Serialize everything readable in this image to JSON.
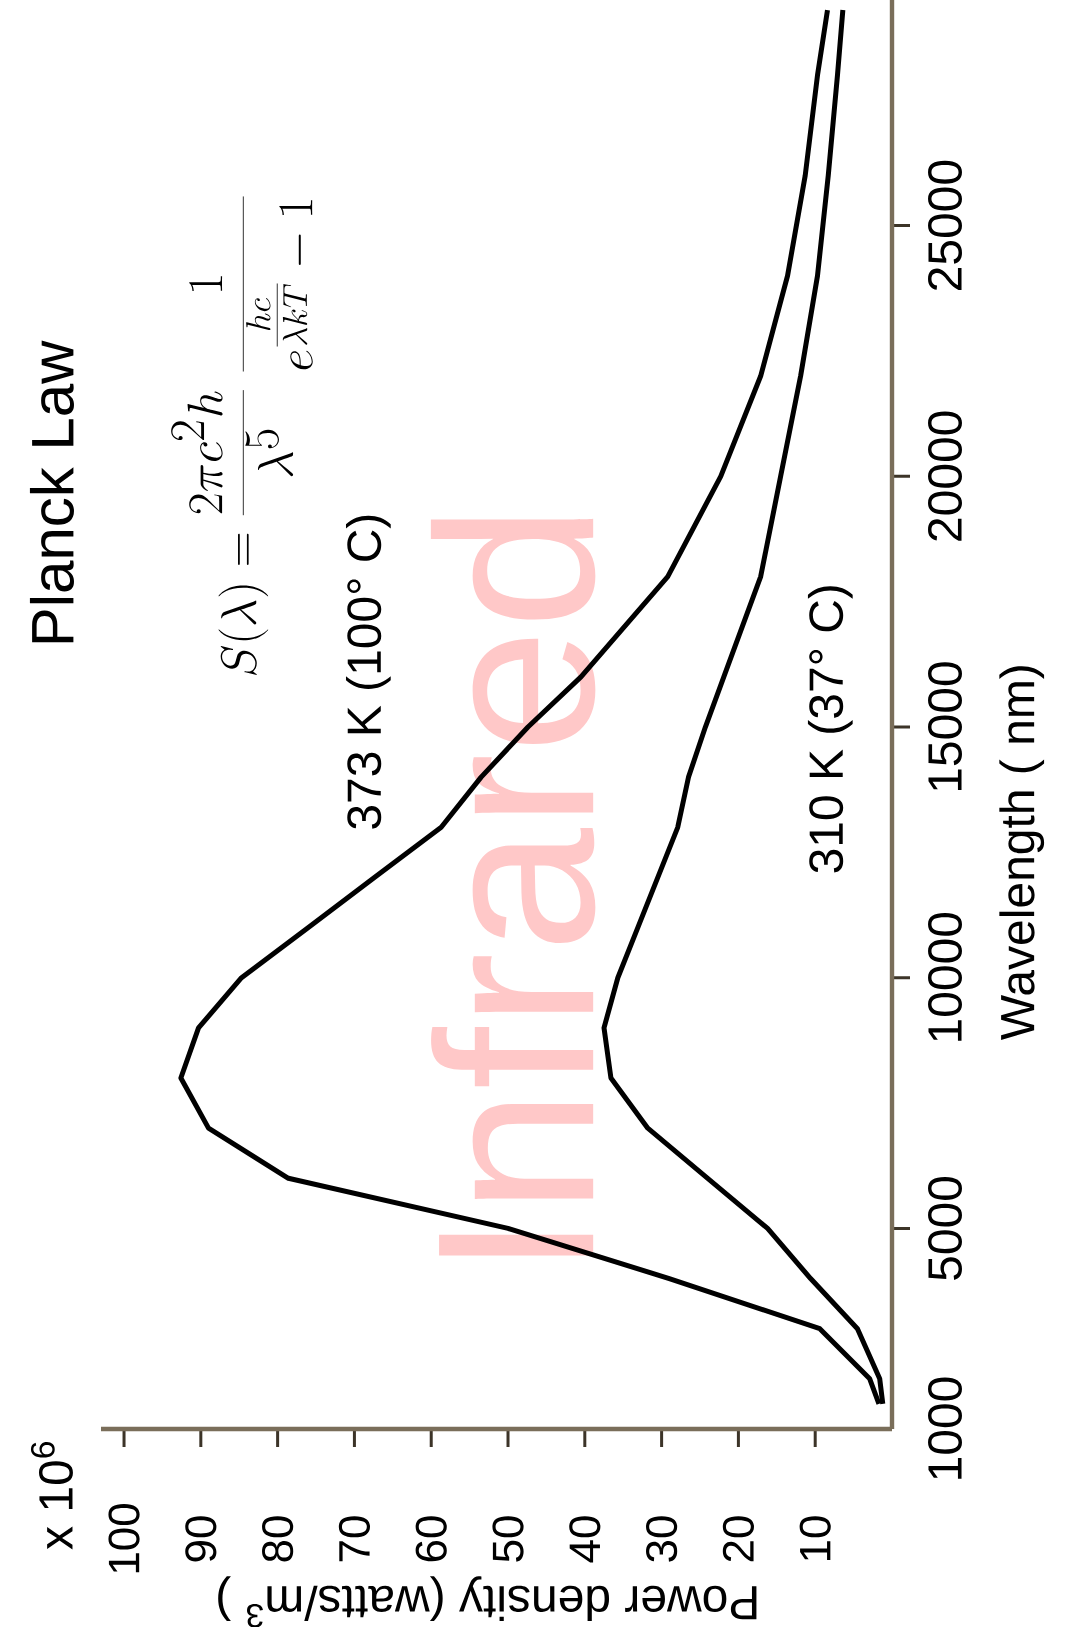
{
  "chart_data": {
    "type": "line",
    "title": "Planck Law",
    "xlabel": "Power density (watts/m$^{3}$ )",
    "ylabel": "Wavelength ( nm)",
    "annotations": [
      "S(\\lambda) = \\frac{2\\pi c^{2}h}{\\lambda^{5}}\\;\\frac{1}{e^{\\frac{hc}{\\lambda kT}}-1}",
      "x 10$^{6}$",
      "Infrared"
    ],
    "series": [
      {
        "name": "373 K (100° C)",
        "color": "#000000",
        "x": [
          1.7,
          2.9,
          9.4,
          29,
          50,
          78.6,
          89,
          92.6,
          90.3,
          84.7,
          76,
          67.4,
          58.7,
          53.5,
          47.4,
          40.5,
          29.2,
          22.3,
          17.1,
          13.6,
          11.3,
          9.7,
          8.4
        ],
        "values": [
          1500,
          2000,
          3000,
          4000,
          5000,
          6000,
          7000,
          8000,
          9000,
          10000,
          11000,
          12000,
          13000,
          14000,
          15000,
          16000,
          18000,
          20000,
          22000,
          24000,
          26000,
          28000,
          29300
        ]
      },
      {
        "name": "310 K (37° C)",
        "color": "#000000",
        "x": [
          1.2,
          1.6,
          4.5,
          10.6,
          16.2,
          24,
          31.8,
          36.6,
          37.5,
          35.7,
          33.1,
          30.5,
          27.9,
          26.5,
          24.3,
          21.9,
          17.1,
          14.5,
          11.9,
          9.7,
          8.3,
          7.1,
          6.4
        ],
        "values": [
          1500,
          2000,
          3000,
          4000,
          5000,
          6000,
          7000,
          8000,
          9000,
          10000,
          11000,
          12000,
          13000,
          14000,
          15000,
          16000,
          18000,
          20000,
          22000,
          24000,
          26000,
          28000,
          29300
        ]
      }
    ],
    "xlim": [
      103,
      0
    ],
    "ylim": [
      1000,
      29500
    ],
    "xticks": [
      100,
      90,
      80,
      70,
      60,
      50,
      40,
      30,
      20,
      10
    ],
    "yticks": [
      1000,
      5000,
      10000,
      15000,
      20000,
      25000
    ]
  }
}
